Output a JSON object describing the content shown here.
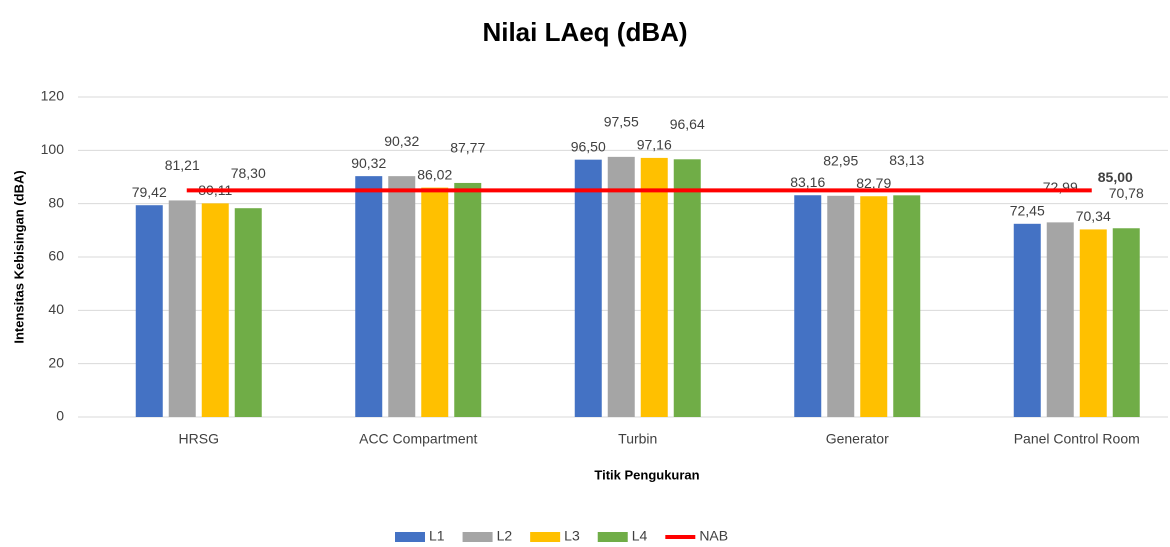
{
  "chart_data": {
    "type": "bar",
    "title": "Nilai LAeq (dBA)",
    "x_label": "Titik Pengukuran",
    "y_label": "Intensitas Kebisingan (dBA)",
    "categories": [
      "HRSG",
      "ACC Compartment",
      "Turbin",
      "Generator",
      "Panel Control Room"
    ],
    "series": [
      {
        "name": "L1",
        "color": "#4472c4",
        "values": [
          79.42,
          90.32,
          96.5,
          83.16,
          72.45
        ],
        "value_labels": [
          "79,42",
          "90,32",
          "96,50",
          "83,16",
          "72,45"
        ]
      },
      {
        "name": "L2",
        "color": "#a5a5a5",
        "values": [
          81.21,
          90.32,
          97.55,
          82.95,
          72.99
        ],
        "value_labels": [
          "81,21",
          "90,32",
          "97,55",
          "82,95",
          "72,99"
        ]
      },
      {
        "name": "L3",
        "color": "#ffc000",
        "values": [
          80.11,
          86.02,
          97.16,
          82.79,
          70.34
        ],
        "value_labels": [
          "80,11",
          "86,02",
          "97,16",
          "82,79",
          "70,34"
        ]
      },
      {
        "name": "L4",
        "color": "#70ad47",
        "values": [
          78.3,
          87.77,
          96.64,
          83.13,
          70.78
        ],
        "value_labels": [
          "78,30",
          "87,77",
          "96,64",
          "83,13",
          "70,78"
        ]
      },
      {
        "name": "NAB",
        "type": "line",
        "color": "#ff0000",
        "values": [
          85,
          85,
          85,
          85,
          85
        ],
        "value_labels": [
          null,
          null,
          null,
          null,
          "85,00"
        ]
      }
    ],
    "ylim": [
      0,
      120
    ],
    "yticks": [
      0,
      20,
      40,
      60,
      80,
      100,
      120
    ],
    "grid": true,
    "legend": "bottom"
  }
}
